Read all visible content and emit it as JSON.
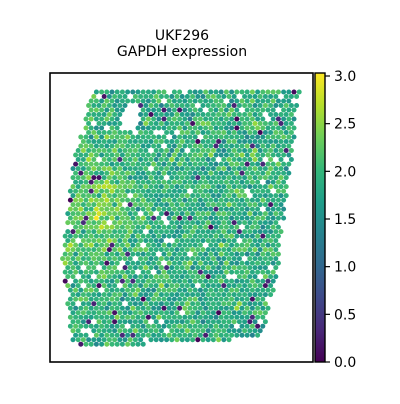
{
  "chart_data": {
    "type": "scatter",
    "subtype": "spatial-spot-map",
    "title": "UKF296",
    "subtitle": "GAPDH expression",
    "xlabel": "",
    "ylabel": "",
    "grid": false,
    "axes_ticks": false,
    "colorbar": {
      "colormap": "viridis",
      "range": [
        0.0,
        3.0
      ],
      "ticks": [
        "0.0",
        "0.5",
        "1.0",
        "1.5",
        "2.0",
        "2.5",
        "3.0"
      ],
      "stops": [
        "#440154",
        "#482878",
        "#3e4989",
        "#31688e",
        "#26828e",
        "#1f9e89",
        "#35b779",
        "#6ece58",
        "#b5de2b",
        "#fde725"
      ]
    },
    "value_distribution": {
      "typical_range": [
        1.2,
        2.6
      ],
      "mode": 1.9,
      "low_outlier_fraction": 0.03,
      "high_region_note": "left-middle"
    }
  }
}
